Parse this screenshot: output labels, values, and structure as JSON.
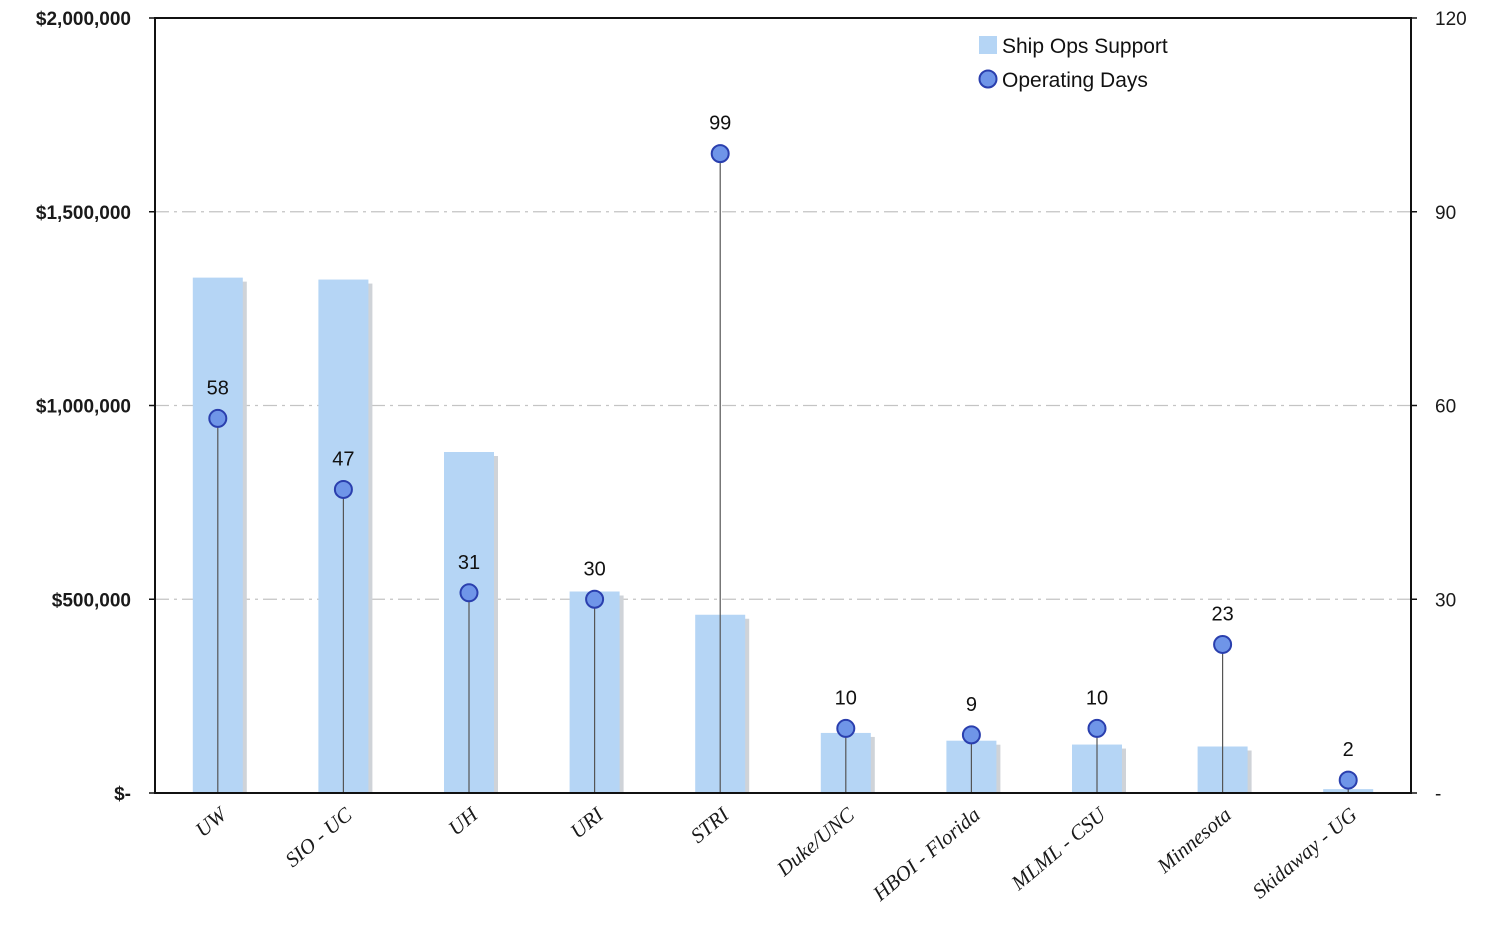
{
  "chart_data": {
    "type": "bar",
    "categories": [
      "UW",
      "SIO - UC",
      "UH",
      "URI",
      "STRI",
      "Duke/UNC",
      "HBOI - Florida",
      "MLML - CSU",
      "Minnesota",
      "Skidaway - UG"
    ],
    "series": [
      {
        "name": "Ship Ops Support",
        "type": "bar",
        "axis": "left",
        "color": "#b5d5f5",
        "values": [
          1330000,
          1325000,
          880000,
          520000,
          460000,
          155000,
          135000,
          125000,
          120000,
          10000
        ]
      },
      {
        "name": "Operating Days",
        "type": "lollipop",
        "axis": "right",
        "color": "#6f95e8",
        "values": [
          58,
          47,
          31,
          30,
          99,
          10,
          9,
          10,
          23,
          2
        ],
        "labels": [
          "58",
          "47",
          "31",
          "30",
          "99",
          "10",
          "9",
          "10",
          "23",
          "2"
        ]
      }
    ],
    "y_left": {
      "range": [
        0,
        2000000
      ],
      "ticks": [
        0,
        500000,
        1000000,
        1500000,
        2000000
      ],
      "tick_labels": [
        "$-",
        "$500,000",
        "$1,000,000",
        "$1,500,000",
        "$2,000,000"
      ]
    },
    "y_right": {
      "range": [
        0,
        120
      ],
      "ticks": [
        0,
        30,
        60,
        90,
        120
      ],
      "tick_labels": [
        "-",
        "30",
        "60",
        "90",
        "120"
      ]
    },
    "grid": true,
    "legend": {
      "placement": "top-right",
      "items": [
        "Ship Ops Support",
        "Operating Days"
      ]
    },
    "colors": {
      "bar": "#b5d5f5",
      "bar_shadow": "#cfd3d8",
      "marker": "#6f95e8",
      "marker_edge": "#2a3fae",
      "gridline": "#c4c4c4"
    }
  }
}
